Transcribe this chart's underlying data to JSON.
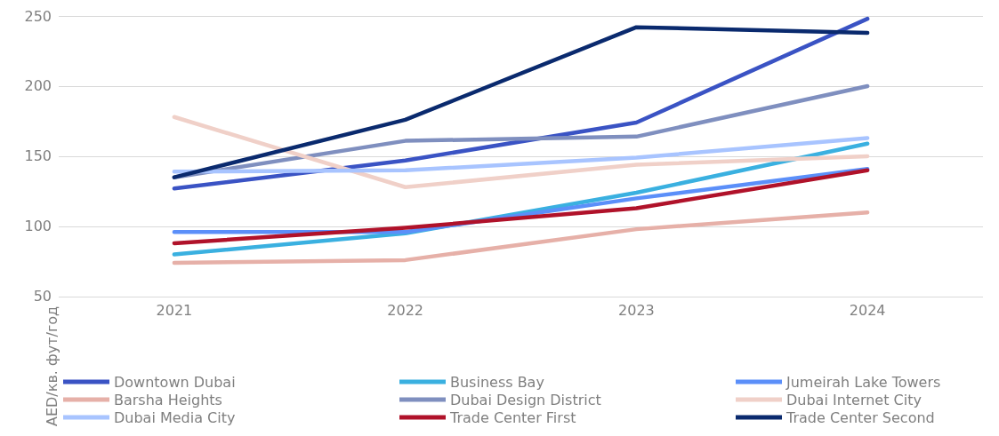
{
  "chart_data": {
    "type": "line",
    "ylabel": "AED/кв. фут/год",
    "categories": [
      "2021",
      "2022",
      "2023",
      "2024"
    ],
    "ylim": [
      50,
      250
    ],
    "yticks": [
      50,
      100,
      150,
      200,
      250
    ],
    "grid": "y",
    "legend": "bottom",
    "marker": "none",
    "line_style": "solid",
    "series": [
      {
        "name": "Downtown Dubai",
        "color": "#3a53c4",
        "values": [
          127,
          147,
          174,
          248
        ]
      },
      {
        "name": "Business Bay",
        "color": "#3ab0e0",
        "values": [
          80,
          95,
          124,
          159
        ]
      },
      {
        "name": "Jumeirah Lake Towers",
        "color": "#5b8ff9",
        "values": [
          96,
          96,
          120,
          141
        ]
      },
      {
        "name": "Barsha Heights",
        "color": "#e6b0a8",
        "values": [
          74,
          76,
          98,
          110
        ]
      },
      {
        "name": "Dubai Design District",
        "color": "#7f8fbf",
        "values": [
          135,
          161,
          164,
          200
        ]
      },
      {
        "name": "Dubai Internet City",
        "color": "#f0d0c8",
        "values": [
          178,
          128,
          144,
          150
        ]
      },
      {
        "name": "Dubai Media City",
        "color": "#a8c4ff",
        "values": [
          139,
          140,
          149,
          163
        ]
      },
      {
        "name": "Trade Center First",
        "color": "#b0122a",
        "values": [
          88,
          99,
          113,
          140
        ]
      },
      {
        "name": "Trade Center Second",
        "color": "#0a2a6e",
        "values": [
          135,
          176,
          242,
          238
        ]
      }
    ]
  }
}
